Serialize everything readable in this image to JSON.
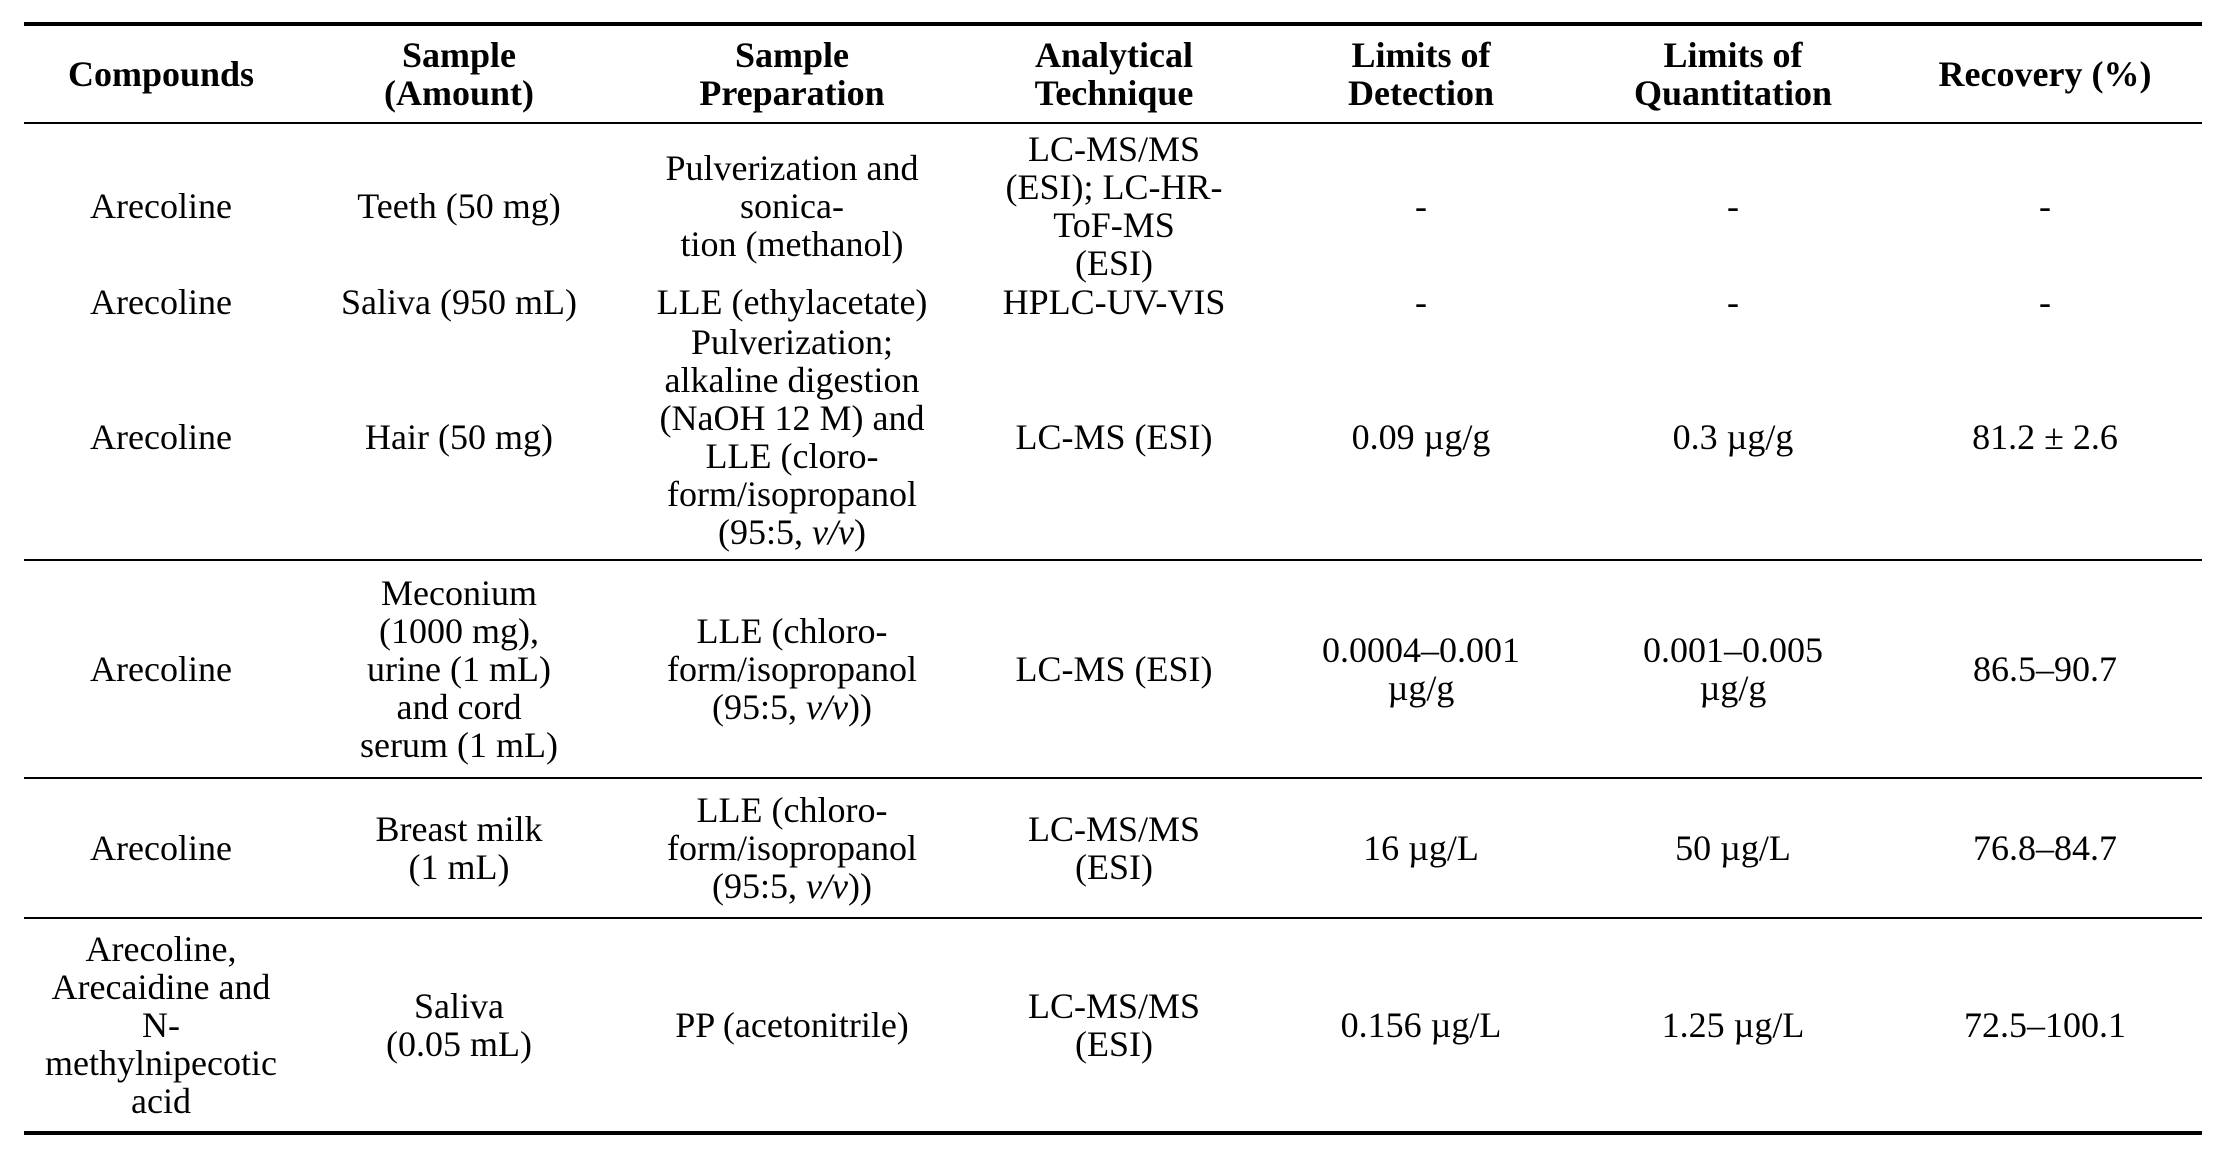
{
  "table": {
    "headers": [
      "Compounds",
      "Sample\n(Amount)",
      "Sample\nPreparation",
      "Analytical\nTechnique",
      "Limits of\nDetection",
      "Limits of\nQuantitation",
      "Recovery (%)"
    ],
    "rows": [
      {
        "compounds": "Arecoline",
        "sample": "Teeth (50 mg)",
        "preparation": "Pulverization and\nsonica-\ntion (methanol)",
        "technique": "LC-MS/MS\n(ESI); LC-HR-\nToF-MS\n(ESI)",
        "lod": "-",
        "loq": "-",
        "recovery": "-"
      },
      {
        "compounds": "Arecoline",
        "sample": "Saliva (950 mL)",
        "preparation": "LLE (ethylacetate)",
        "technique": "HPLC-UV-VIS",
        "lod": "-",
        "loq": "-",
        "recovery": "-"
      },
      {
        "compounds": "Arecoline",
        "sample": "Hair (50 mg)",
        "preparation_lines": [
          "Pulverization;",
          "alkaline digestion",
          "(NaOH 12 M) and",
          "LLE (cloro-",
          "form/isopropanol"
        ],
        "preparation_tail_pre": "(95:5, ",
        "preparation_tail_italic": "v/v",
        "preparation_tail_post": ")",
        "technique": "LC-MS (ESI)",
        "lod": "0.09 µg/g",
        "loq": "0.3 µg/g",
        "recovery": "81.2 ± 2.6"
      },
      {
        "compounds": "Arecoline",
        "sample": "Meconium\n(1000 mg),\nurine (1 mL)\nand cord\nserum (1 mL)",
        "preparation_lines": [
          "LLE (chloro-",
          "form/isopropanol"
        ],
        "preparation_tail_pre": "(95:5, ",
        "preparation_tail_italic": "v/v",
        "preparation_tail_post": "))",
        "technique": "LC-MS (ESI)",
        "lod": "0.0004–0.001\nµg/g",
        "loq": "0.001–0.005\nµg/g",
        "recovery": "86.5–90.7"
      },
      {
        "compounds": "Arecoline",
        "sample": "Breast milk\n(1 mL)",
        "preparation_lines": [
          "LLE (chloro-",
          "form/isopropanol"
        ],
        "preparation_tail_pre": "(95:5, ",
        "preparation_tail_italic": "v/v",
        "preparation_tail_post": "))",
        "technique": "LC-MS/MS\n(ESI)",
        "lod": "16 µg/L",
        "loq": "50 µg/L",
        "recovery": "76.8–84.7"
      },
      {
        "compounds": "Arecoline,\nArecaidine and\nN-\nmethylnipecotic\nacid",
        "sample": "Saliva\n(0.05 mL)",
        "preparation": "PP (acetonitrile)",
        "technique": "LC-MS/MS\n(ESI)",
        "lod": "0.156 µg/L",
        "loq": "1.25 µg/L",
        "recovery": "72.5–100.1"
      }
    ]
  }
}
